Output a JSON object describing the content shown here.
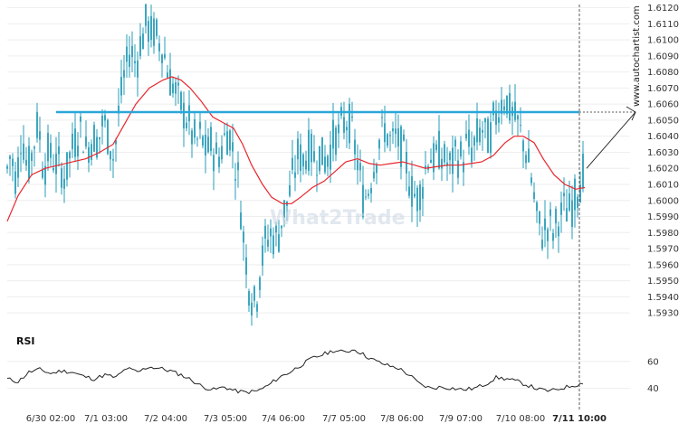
{
  "chart_data": {
    "type": "candlestick-with-indicators",
    "ylim": [
      1.5925,
      1.6122
    ],
    "y_ticks": [
      "1.6120",
      "1.6110",
      "1.6100",
      "1.6090",
      "1.6080",
      "1.6070",
      "1.6060",
      "1.6050",
      "1.6040",
      "1.6030",
      "1.6020",
      "1.6010",
      "1.6000",
      "1.5990",
      "1.5980",
      "1.5970",
      "1.5960",
      "1.5950",
      "1.5940",
      "1.5930"
    ],
    "x_ticks": [
      "6/30 02:00",
      "7/1 03:00",
      "7/2 04:00",
      "7/3 05:00",
      "7/4 06:00",
      "7/7 05:00",
      "7/8 06:00",
      "7/9 07:00",
      "7/10 08:00",
      "7/11 10:00"
    ],
    "resistance_level": 1.6055,
    "projection_target": 1.6055,
    "colors": {
      "candle": "#2a9cb8",
      "ma": "#e8262d",
      "level": "#2aa7d9",
      "rsi": "#222222",
      "grid": "#eeeeee"
    },
    "price_path": [
      [
        0,
        1.5985
      ],
      [
        6,
        1.6015
      ],
      [
        12,
        1.603
      ],
      [
        18,
        1.601
      ],
      [
        24,
        1.6045
      ],
      [
        30,
        1.602
      ],
      [
        36,
        1.603
      ],
      [
        42,
        1.605
      ],
      [
        48,
        1.602
      ],
      [
        54,
        1.603
      ],
      [
        60,
        1.6025
      ],
      [
        66,
        1.602
      ],
      [
        72,
        1.6015
      ],
      [
        78,
        1.603
      ],
      [
        84,
        1.604
      ],
      [
        90,
        1.6045
      ],
      [
        96,
        1.603
      ],
      [
        102,
        1.604
      ],
      [
        108,
        1.6035
      ],
      [
        114,
        1.605
      ],
      [
        120,
        1.604
      ],
      [
        126,
        1.6025
      ],
      [
        132,
        1.606
      ],
      [
        138,
        1.608
      ],
      [
        144,
        1.6095
      ],
      [
        150,
        1.6085
      ],
      [
        156,
        1.61
      ],
      [
        162,
        1.611
      ],
      [
        168,
        1.6105
      ],
      [
        174,
        1.61
      ],
      [
        180,
        1.6095
      ],
      [
        186,
        1.608
      ],
      [
        192,
        1.607
      ],
      [
        198,
        1.606
      ],
      [
        204,
        1.6055
      ],
      [
        210,
        1.6045
      ],
      [
        216,
        1.6035
      ],
      [
        222,
        1.604
      ],
      [
        228,
        1.603
      ],
      [
        234,
        1.6035
      ],
      [
        240,
        1.6025
      ],
      [
        246,
        1.6035
      ],
      [
        252,
        1.6045
      ],
      [
        258,
        1.603
      ],
      [
        264,
        1.601
      ],
      [
        270,
        1.597
      ],
      [
        276,
        1.5945
      ],
      [
        282,
        1.5935
      ],
      [
        288,
        1.596
      ],
      [
        294,
        1.5975
      ],
      [
        300,
        1.598
      ],
      [
        306,
        1.5975
      ],
      [
        312,
        1.599
      ],
      [
        318,
        1.6
      ],
      [
        324,
        1.6015
      ],
      [
        330,
        1.603
      ],
      [
        336,
        1.6025
      ],
      [
        342,
        1.6035
      ],
      [
        348,
        1.6025
      ],
      [
        354,
        1.603
      ],
      [
        360,
        1.6025
      ],
      [
        366,
        1.6035
      ],
      [
        372,
        1.604
      ],
      [
        378,
        1.6045
      ],
      [
        384,
        1.605
      ],
      [
        390,
        1.604
      ],
      [
        396,
        1.602
      ],
      [
        402,
        1.6
      ],
      [
        408,
        1.601
      ],
      [
        414,
        1.6025
      ],
      [
        420,
        1.604
      ],
      [
        426,
        1.6045
      ],
      [
        432,
        1.6035
      ],
      [
        438,
        1.604
      ],
      [
        444,
        1.603
      ],
      [
        450,
        1.602
      ],
      [
        456,
        1.6005
      ],
      [
        462,
        1.6
      ],
      [
        468,
        1.6015
      ],
      [
        474,
        1.603
      ],
      [
        480,
        1.6025
      ],
      [
        486,
        1.603
      ],
      [
        492,
        1.6025
      ],
      [
        498,
        1.602
      ],
      [
        504,
        1.603
      ],
      [
        510,
        1.6025
      ],
      [
        516,
        1.6035
      ],
      [
        522,
        1.603
      ],
      [
        528,
        1.604
      ],
      [
        534,
        1.6045
      ],
      [
        540,
        1.6035
      ],
      [
        546,
        1.605
      ],
      [
        552,
        1.606
      ],
      [
        558,
        1.6065
      ],
      [
        564,
        1.6055
      ],
      [
        570,
        1.605
      ],
      [
        576,
        1.604
      ],
      [
        582,
        1.603
      ],
      [
        588,
        1.601
      ],
      [
        594,
        1.5985
      ],
      [
        600,
        1.598
      ],
      [
        606,
        1.5985
      ],
      [
        612,
        1.598
      ],
      [
        618,
        1.599
      ],
      [
        624,
        1.5995
      ],
      [
        630,
        1.5995
      ],
      [
        636,
        1.6005
      ],
      [
        642,
        1.6015
      ],
      [
        646,
        1.602
      ]
    ],
    "ma_path": [
      [
        8,
        1.5987
      ],
      [
        20,
        1.6003
      ],
      [
        35,
        1.6016
      ],
      [
        50,
        1.602
      ],
      [
        65,
        1.6022
      ],
      [
        80,
        1.6024
      ],
      [
        95,
        1.6026
      ],
      [
        110,
        1.603
      ],
      [
        125,
        1.6035
      ],
      [
        135,
        1.6045
      ],
      [
        150,
        1.606
      ],
      [
        165,
        1.607
      ],
      [
        180,
        1.6075
      ],
      [
        190,
        1.6077
      ],
      [
        200,
        1.6075
      ],
      [
        210,
        1.607
      ],
      [
        222,
        1.6062
      ],
      [
        235,
        1.6052
      ],
      [
        248,
        1.6048
      ],
      [
        258,
        1.6045
      ],
      [
        268,
        1.6035
      ],
      [
        278,
        1.6022
      ],
      [
        290,
        1.601
      ],
      [
        300,
        1.6002
      ],
      [
        312,
        1.5998
      ],
      [
        322,
        1.5998
      ],
      [
        332,
        1.6002
      ],
      [
        345,
        1.6008
      ],
      [
        358,
        1.6012
      ],
      [
        370,
        1.6018
      ],
      [
        382,
        1.6024
      ],
      [
        395,
        1.6026
      ],
      [
        408,
        1.6023
      ],
      [
        420,
        1.6022
      ],
      [
        432,
        1.6023
      ],
      [
        445,
        1.6024
      ],
      [
        458,
        1.6022
      ],
      [
        470,
        1.602
      ],
      [
        482,
        1.6021
      ],
      [
        495,
        1.6022
      ],
      [
        508,
        1.6022
      ],
      [
        520,
        1.6023
      ],
      [
        532,
        1.6024
      ],
      [
        545,
        1.6028
      ],
      [
        558,
        1.6036
      ],
      [
        568,
        1.604
      ],
      [
        578,
        1.604
      ],
      [
        590,
        1.6036
      ],
      [
        600,
        1.6026
      ],
      [
        612,
        1.6016
      ],
      [
        624,
        1.601
      ],
      [
        636,
        1.6007
      ],
      [
        646,
        1.6008
      ]
    ],
    "rsi_ticks": [
      60,
      40
    ],
    "rsi_ylim": [
      33,
      72
    ],
    "rsi_path": [
      [
        8,
        47
      ],
      [
        20,
        45
      ],
      [
        32,
        52
      ],
      [
        44,
        54
      ],
      [
        56,
        51
      ],
      [
        68,
        53
      ],
      [
        80,
        52
      ],
      [
        92,
        49
      ],
      [
        104,
        47
      ],
      [
        116,
        50
      ],
      [
        128,
        48
      ],
      [
        140,
        55
      ],
      [
        152,
        52
      ],
      [
        164,
        56
      ],
      [
        176,
        55
      ],
      [
        188,
        53
      ],
      [
        200,
        50
      ],
      [
        212,
        46
      ],
      [
        224,
        41
      ],
      [
        236,
        39
      ],
      [
        248,
        41
      ],
      [
        260,
        38
      ],
      [
        272,
        37
      ],
      [
        284,
        38
      ],
      [
        296,
        42
      ],
      [
        308,
        48
      ],
      [
        320,
        52
      ],
      [
        332,
        57
      ],
      [
        344,
        62
      ],
      [
        356,
        65
      ],
      [
        368,
        68
      ],
      [
        380,
        67
      ],
      [
        392,
        69
      ],
      [
        404,
        64
      ],
      [
        416,
        60
      ],
      [
        428,
        57
      ],
      [
        440,
        55
      ],
      [
        452,
        50
      ],
      [
        464,
        43
      ],
      [
        476,
        40
      ],
      [
        488,
        41
      ],
      [
        500,
        40
      ],
      [
        512,
        39
      ],
      [
        524,
        40
      ],
      [
        536,
        43
      ],
      [
        548,
        48
      ],
      [
        560,
        47
      ],
      [
        572,
        45
      ],
      [
        584,
        42
      ],
      [
        596,
        39
      ],
      [
        608,
        38
      ],
      [
        620,
        40
      ],
      [
        632,
        42
      ],
      [
        640,
        43
      ],
      [
        646,
        45
      ]
    ],
    "price_label": "",
    "rsi_title": "RSI",
    "watermark": "What2Trade",
    "source_url": "www.autochartist.com"
  }
}
